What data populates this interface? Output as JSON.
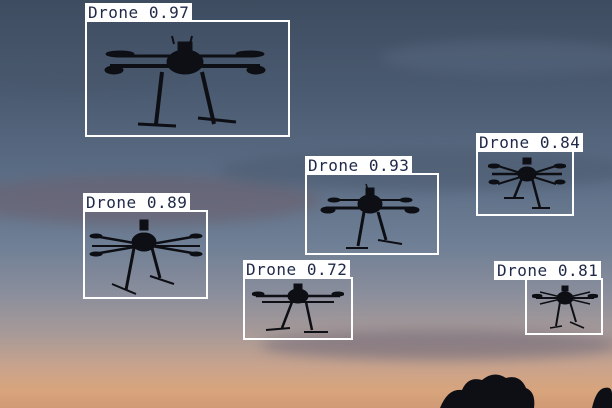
{
  "detections": [
    {
      "id": "d1",
      "label": "Drone",
      "score": "0.97"
    },
    {
      "id": "d2",
      "label": "Drone",
      "score": "0.93"
    },
    {
      "id": "d3",
      "label": "Drone",
      "score": "0.84"
    },
    {
      "id": "d4",
      "label": "Drone",
      "score": "0.89"
    },
    {
      "id": "d5",
      "label": "Drone",
      "score": "0.72"
    },
    {
      "id": "d6",
      "label": "Drone",
      "score": "0.81"
    }
  ],
  "colors": {
    "box": "#ffffff",
    "label_text": "#202a48",
    "silhouette": "#0d0f14"
  }
}
